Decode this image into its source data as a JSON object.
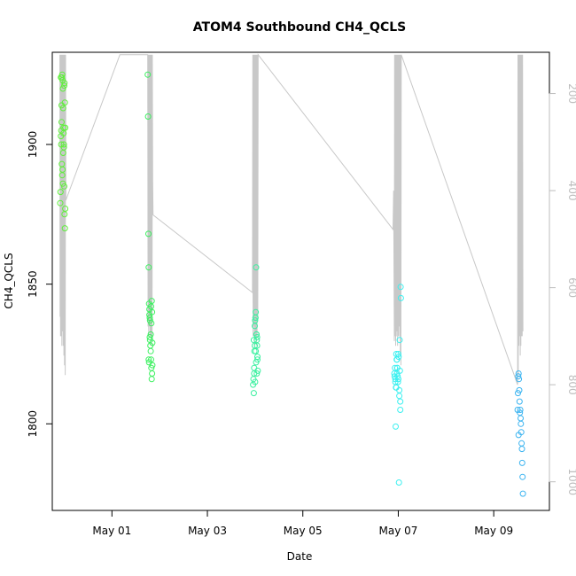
{
  "chart_data": {
    "type": "scatter",
    "title": "ATOM4 Southbound CH4_QCLS",
    "xlabel": "Date",
    "ylabel": "CH4_QCLS",
    "y_ticks": [
      1800,
      1850,
      1900
    ],
    "y_tick_labels": [
      "1800",
      "1850",
      "1900"
    ],
    "x_ticks": [
      "2018-05-01",
      "2018-05-03",
      "2018-05-05",
      "2018-05-07",
      "2018-05-09"
    ],
    "x_tick_labels": [
      "May 01",
      "May 03",
      "May 05",
      "May 07",
      "May 09"
    ],
    "xlim": [
      "2018-04-29T18:00",
      "2018-05-10T04:00"
    ],
    "ylim": [
      1769,
      1933
    ],
    "right_axis": {
      "ticks": [
        200,
        400,
        600,
        800,
        1000
      ],
      "tick_labels": [
        "200",
        "400",
        "600",
        "800",
        "1000"
      ],
      "lim": [
        1059,
        115
      ],
      "color": "#bdbdbd"
    },
    "marker": "open-circle",
    "grid": false,
    "flights": [
      {
        "color": "#5ef03a",
        "x": [
          "2018-04-29T22:00",
          "2018-04-29T22:10",
          "2018-04-29T22:20",
          "2018-04-29T22:30",
          "2018-04-29T22:40",
          "2018-04-29T22:50",
          "2018-04-29T23:00",
          "2018-04-29T23:10",
          "2018-04-29T23:20",
          "2018-04-29T23:30",
          "2018-04-29T23:40",
          "2018-04-29T23:50",
          "2018-04-30T00:00",
          "2018-04-30T00:10",
          "2018-04-30T00:20",
          "2018-04-30T00:30",
          "2018-04-29T22:30",
          "2018-04-29T23:00",
          "2018-04-29T23:30",
          "2018-04-29T22:50",
          "2018-04-30T00:00",
          "2018-04-29T23:40",
          "2018-04-30T00:20",
          "2018-04-30T00:10",
          "2018-04-29T22:20",
          "2018-04-29T23:10",
          "2018-04-29T23:50",
          "2018-04-29T22:40",
          "2018-04-29T23:20",
          "2018-04-30T00:30"
        ],
        "y": [
          1879,
          1883,
          1903,
          1905,
          1914,
          1924,
          1925,
          1923,
          1920,
          1913,
          1906,
          1899,
          1885,
          1875,
          1870,
          1877,
          1900,
          1889,
          1897,
          1893,
          1921,
          1904,
          1915,
          1922,
          1924,
          1891,
          1900,
          1908,
          1886,
          1906
        ]
      },
      {
        "color": "#3cf060",
        "x": [
          "2018-05-01T18:00",
          "2018-05-01T18:10",
          "2018-05-01T18:20",
          "2018-05-01T18:30",
          "2018-05-01T18:40",
          "2018-05-01T18:50",
          "2018-05-01T19:00",
          "2018-05-01T19:10",
          "2018-05-01T19:20",
          "2018-05-01T19:30",
          "2018-05-01T19:40",
          "2018-05-01T19:50",
          "2018-05-01T20:00",
          "2018-05-01T20:10",
          "2018-05-01T20:20",
          "2018-05-01T18:30",
          "2018-05-01T19:00",
          "2018-05-01T19:30",
          "2018-05-01T20:00",
          "2018-05-01T18:50",
          "2018-05-01T19:40",
          "2018-05-01T20:10",
          "2018-05-01T19:10",
          "2018-05-01T18:40",
          "2018-05-01T20:20",
          "2018-05-01T19:50"
        ],
        "y": [
          1925,
          1910,
          1868,
          1856,
          1843,
          1839,
          1838,
          1830,
          1828,
          1826,
          1823,
          1820,
          1816,
          1818,
          1821,
          1823,
          1831,
          1832,
          1844,
          1841,
          1842,
          1840,
          1837,
          1822,
          1829,
          1836
        ]
      },
      {
        "color": "#3cf0a0",
        "x": [
          "2018-05-03T23:00",
          "2018-05-03T23:10",
          "2018-05-03T23:20",
          "2018-05-03T23:30",
          "2018-05-03T23:40",
          "2018-05-03T23:50",
          "2018-05-04T00:00",
          "2018-05-04T00:10",
          "2018-05-04T00:20",
          "2018-05-04T00:30",
          "2018-05-04T00:40",
          "2018-05-04T00:50",
          "2018-05-04T01:00",
          "2018-05-04T01:10",
          "2018-05-04T01:20",
          "2018-05-03T23:30",
          "2018-05-04T00:00",
          "2018-05-04T00:30",
          "2018-05-04T01:00",
          "2018-05-03T23:50",
          "2018-05-04T00:20",
          "2018-05-04T00:50",
          "2018-05-03T23:20",
          "2018-05-04T00:10",
          "2018-05-04T00:40",
          "2018-05-04T01:10"
        ],
        "y": [
          1814,
          1816,
          1811,
          1818,
          1826,
          1828,
          1837,
          1838,
          1840,
          1856,
          1832,
          1830,
          1828,
          1823,
          1819,
          1820,
          1815,
          1822,
          1831,
          1835,
          1826,
          1818,
          1830,
          1838,
          1832,
          1824
        ]
      },
      {
        "color": "#3cf0f0",
        "x": [
          "2018-05-06T22:00",
          "2018-05-06T22:10",
          "2018-05-06T22:20",
          "2018-05-06T22:30",
          "2018-05-06T22:40",
          "2018-05-06T22:50",
          "2018-05-06T23:00",
          "2018-05-06T23:10",
          "2018-05-06T23:20",
          "2018-05-06T23:30",
          "2018-05-06T23:40",
          "2018-05-06T23:50",
          "2018-05-07T00:00",
          "2018-05-07T00:10",
          "2018-05-07T00:20",
          "2018-05-07T00:30",
          "2018-05-07T00:40",
          "2018-05-07T00:50",
          "2018-05-07T01:00",
          "2018-05-07T01:10",
          "2018-05-07T01:20",
          "2018-05-06T22:30",
          "2018-05-06T23:00",
          "2018-05-06T23:30",
          "2018-05-07T00:00",
          "2018-05-07T00:30",
          "2018-05-07T01:00",
          "2018-05-06T23:20"
        ],
        "y": [
          1818,
          1817,
          1820,
          1815,
          1799,
          1813,
          1825,
          1823,
          1818,
          1820,
          1817,
          1815,
          1825,
          1824,
          1779,
          1812,
          1830,
          1819,
          1805,
          1849,
          1845,
          1816,
          1813,
          1820,
          1816,
          1810,
          1808,
          1823
        ]
      },
      {
        "color": "#3cb4f0",
        "x": [
          "2018-05-09T12:00",
          "2018-05-09T12:10",
          "2018-05-09T12:20",
          "2018-05-09T12:30",
          "2018-05-09T12:40",
          "2018-05-09T12:50",
          "2018-05-09T13:00",
          "2018-05-09T13:10",
          "2018-05-09T13:20",
          "2018-05-09T13:30",
          "2018-05-09T13:40",
          "2018-05-09T13:50",
          "2018-05-09T14:00",
          "2018-05-09T14:10",
          "2018-05-09T14:20",
          "2018-05-09T14:30",
          "2018-05-09T14:40",
          "2018-05-09T12:30"
        ],
        "y": [
          1805,
          1811,
          1817,
          1818,
          1816,
          1812,
          1808,
          1804,
          1805,
          1802,
          1800,
          1797,
          1793,
          1791,
          1786,
          1781,
          1775,
          1796
        ]
      }
    ],
    "pressure_trace": {
      "color": "#c8c8c8",
      "x": [
        "2018-04-29T21:50",
        "2018-04-29T21:55",
        "2018-04-29T22:00",
        "2018-04-29T22:10",
        "2018-04-29T22:20",
        "2018-04-29T22:30",
        "2018-04-29T22:40",
        "2018-04-29T22:50",
        "2018-04-29T23:00",
        "2018-04-29T23:10",
        "2018-04-29T23:20",
        "2018-04-29T23:30",
        "2018-04-29T23:40",
        "2018-04-29T23:50",
        "2018-04-30T00:00",
        "2018-04-30T00:10",
        "2018-04-30T00:20",
        "2018-04-30T00:30",
        "2018-04-30T00:40",
        "2018-04-30T00:50",
        "2018-05-01T04:00",
        "2018-05-01T18:00",
        "2018-05-01T18:10",
        "2018-05-01T18:20",
        "2018-05-01T18:30",
        "2018-05-01T18:40",
        "2018-05-01T18:50",
        "2018-05-01T19:00",
        "2018-05-01T19:10",
        "2018-05-01T19:20",
        "2018-05-01T19:30",
        "2018-05-01T19:40",
        "2018-05-01T19:50",
        "2018-05-01T20:00",
        "2018-05-01T20:10",
        "2018-05-01T20:20",
        "2018-05-01T20:30",
        "2018-05-01T20:40",
        "2018-05-03T22:40",
        "2018-05-03T22:50",
        "2018-05-03T23:00",
        "2018-05-03T23:10",
        "2018-05-03T23:20",
        "2018-05-03T23:30",
        "2018-05-03T23:40",
        "2018-05-03T23:50",
        "2018-05-04T00:00",
        "2018-05-04T00:10",
        "2018-05-04T00:20",
        "2018-05-04T00:30",
        "2018-05-04T00:40",
        "2018-05-04T00:50",
        "2018-05-04T01:00",
        "2018-05-04T01:10",
        "2018-05-04T01:20",
        "2018-05-04T01:30",
        "2018-05-06T21:20",
        "2018-05-06T21:40",
        "2018-05-06T22:00",
        "2018-05-06T22:10",
        "2018-05-06T22:20",
        "2018-05-06T22:30",
        "2018-05-06T22:40",
        "2018-05-06T22:50",
        "2018-05-06T23:00",
        "2018-05-06T23:10",
        "2018-05-06T23:20",
        "2018-05-06T23:30",
        "2018-05-06T23:40",
        "2018-05-06T23:50",
        "2018-05-07T00:00",
        "2018-05-07T00:10",
        "2018-05-07T00:20",
        "2018-05-07T00:30",
        "2018-05-07T00:40",
        "2018-05-07T00:50",
        "2018-05-07T01:00",
        "2018-05-07T01:10",
        "2018-05-07T01:20",
        "2018-05-07T01:30",
        "2018-05-09T12:00",
        "2018-05-09T12:10",
        "2018-05-09T12:20",
        "2018-05-09T12:30",
        "2018-05-09T12:40",
        "2018-05-09T12:50",
        "2018-05-09T13:00",
        "2018-05-09T13:10",
        "2018-05-09T13:20",
        "2018-05-09T13:30",
        "2018-05-09T13:40",
        "2018-05-09T13:50",
        "2018-05-09T14:00",
        "2018-05-09T14:10",
        "2018-05-09T14:20",
        "2018-05-09T14:30",
        "2018-05-09T14:40"
      ],
      "y": [
        120,
        660,
        120,
        700,
        120,
        700,
        120,
        720,
        120,
        690,
        120,
        720,
        120,
        740,
        120,
        760,
        120,
        780,
        120,
        420,
        120,
        120,
        680,
        120,
        700,
        120,
        680,
        120,
        700,
        120,
        700,
        120,
        720,
        120,
        700,
        120,
        380,
        450,
        610,
        120,
        700,
        120,
        680,
        120,
        720,
        120,
        700,
        120,
        700,
        120,
        720,
        120,
        700,
        120,
        660,
        120,
        480,
        400,
        710,
        120,
        700,
        120,
        720,
        120,
        700,
        120,
        690,
        120,
        720,
        120,
        700,
        120,
        680,
        120,
        700,
        120,
        740,
        120,
        760,
        120,
        800,
        120,
        780,
        120,
        720,
        120,
        700,
        120,
        740,
        120,
        720,
        120,
        700,
        120,
        700,
        120,
        690
      ]
    }
  }
}
